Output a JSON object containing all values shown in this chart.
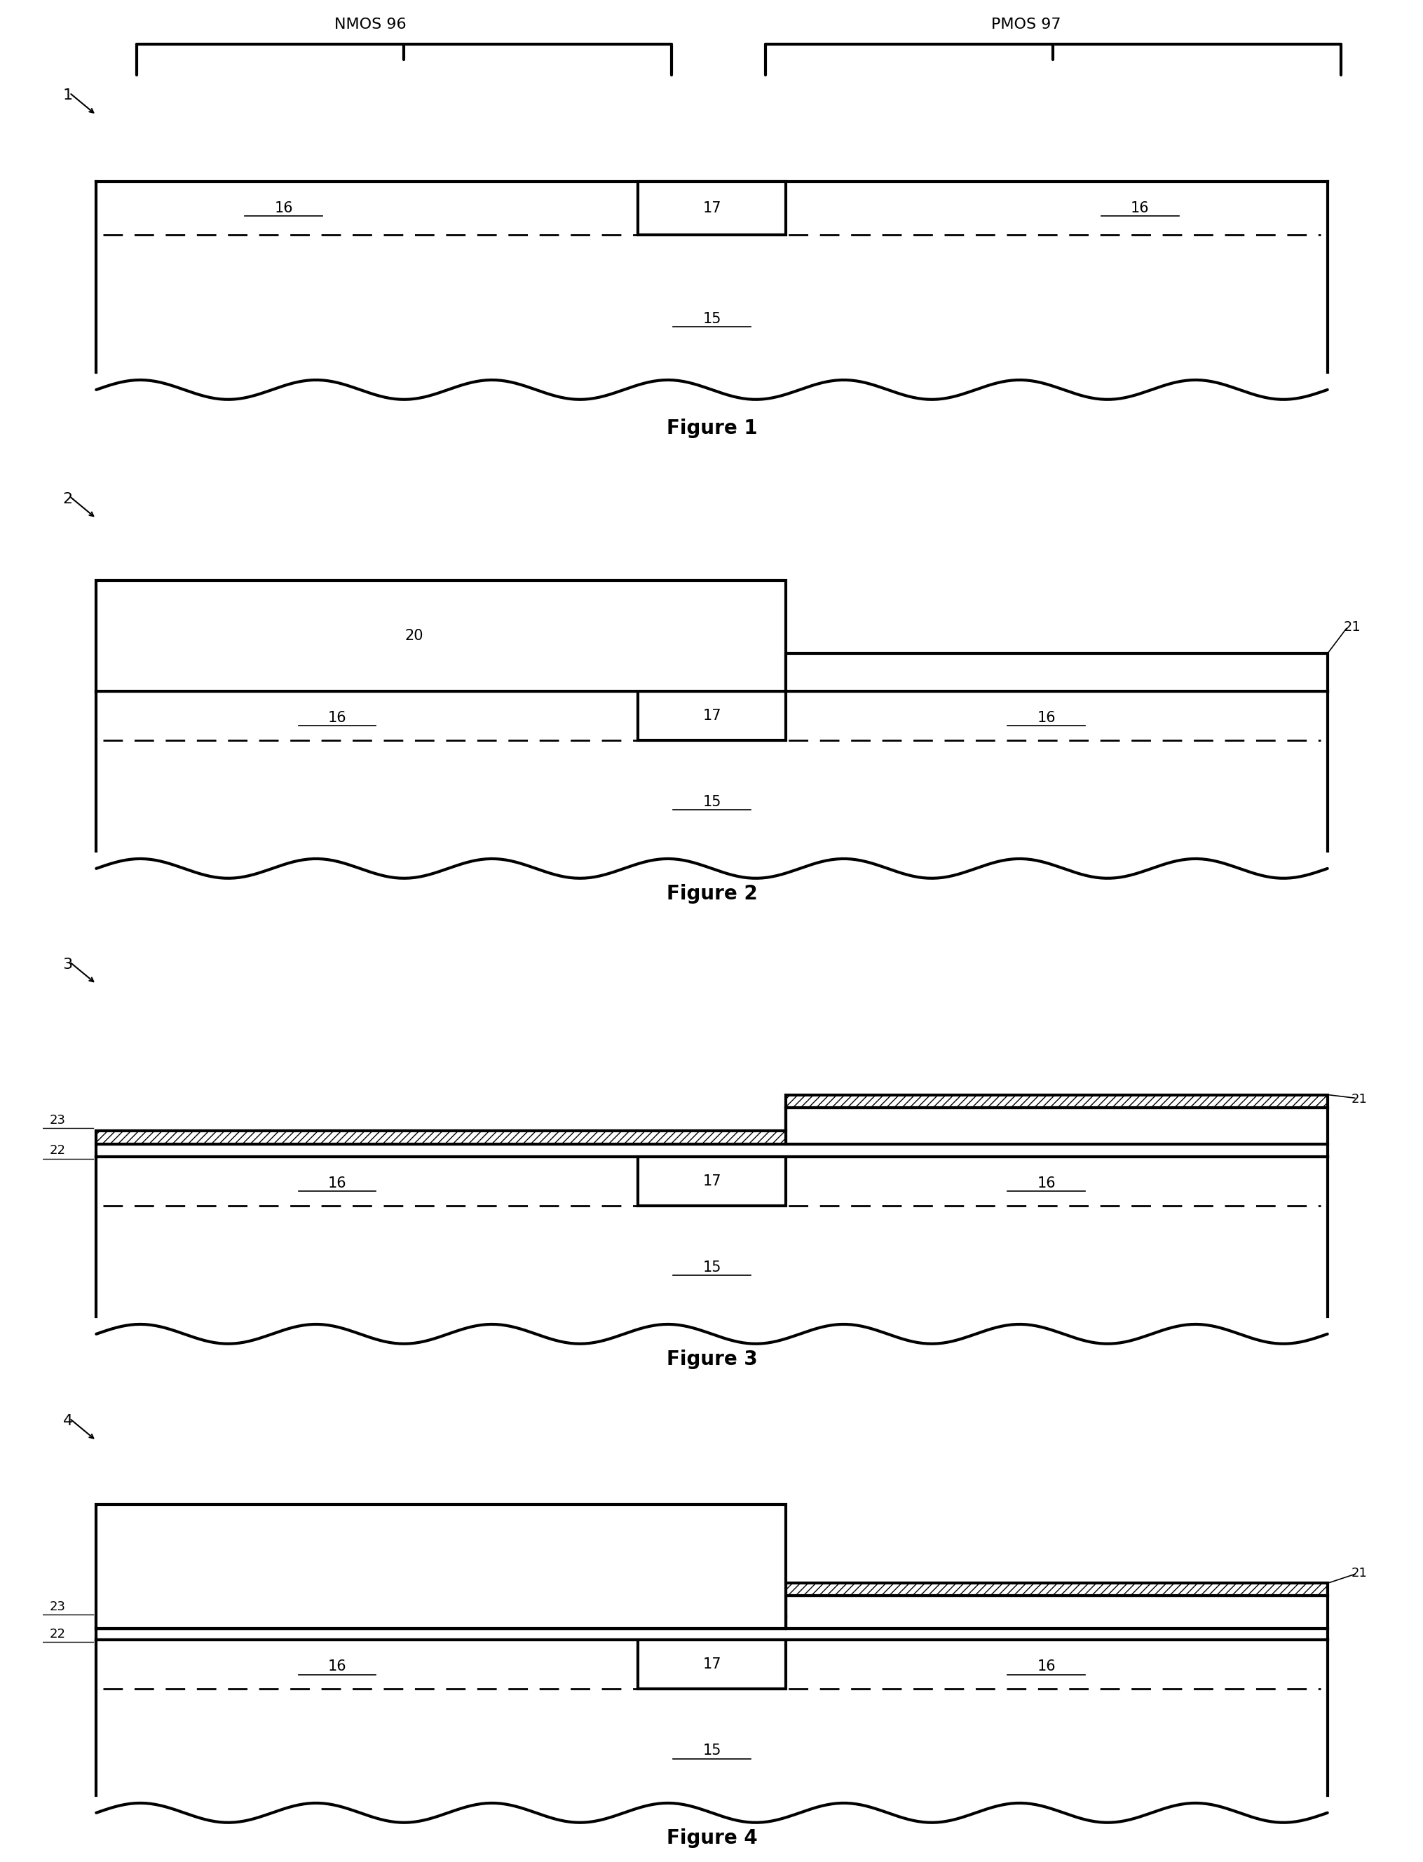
{
  "fig_width": 20.31,
  "fig_height": 26.56,
  "bg_color": "#ffffff",
  "line_color": "#000000",
  "lw_thick": 3.0,
  "lw_med": 2.0,
  "lw_thin": 1.2,
  "nmos_label": "NMOS 96",
  "pmos_label": "PMOS 97",
  "fig_titles": [
    "Figure 1",
    "Figure 2",
    "Figure 3",
    "Figure 4"
  ],
  "fig_numbers": [
    "1",
    "2",
    "3",
    "4"
  ]
}
